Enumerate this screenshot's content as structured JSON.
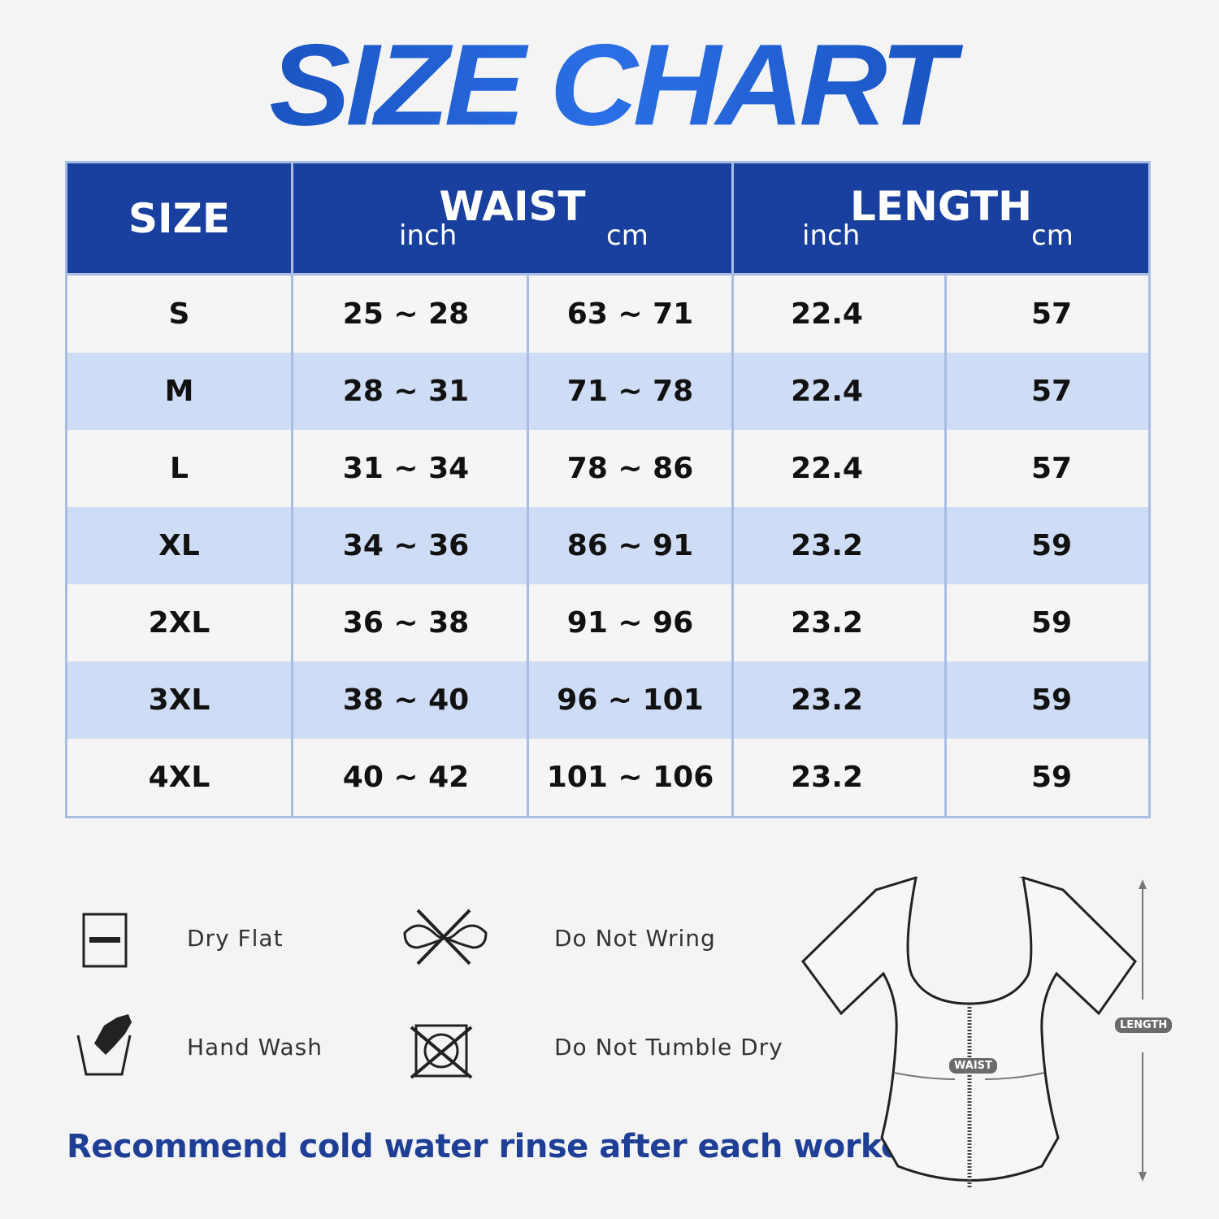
{
  "title": "SIZE CHART",
  "table": {
    "headers": {
      "size": "SIZE",
      "waist": "WAIST",
      "length": "LENGTH",
      "inch": "inch",
      "cm": "cm"
    },
    "rows": [
      {
        "size": "S",
        "waist_inch": "25 ~ 28",
        "waist_cm": "63 ~ 71",
        "length_inch": "22.4",
        "length_cm": "57"
      },
      {
        "size": "M",
        "waist_inch": "28 ~ 31",
        "waist_cm": "71 ~ 78",
        "length_inch": "22.4",
        "length_cm": "57"
      },
      {
        "size": "L",
        "waist_inch": "31 ~ 34",
        "waist_cm": "78 ~ 86",
        "length_inch": "22.4",
        "length_cm": "57"
      },
      {
        "size": "XL",
        "waist_inch": "34 ~ 36",
        "waist_cm": "86 ~ 91",
        "length_inch": "23.2",
        "length_cm": "59"
      },
      {
        "size": "2XL",
        "waist_inch": "36 ~ 38",
        "waist_cm": "91 ~ 96",
        "length_inch": "23.2",
        "length_cm": "59"
      },
      {
        "size": "3XL",
        "waist_inch": "38 ~ 40",
        "waist_cm": "96 ~ 101",
        "length_inch": "23.2",
        "length_cm": "59"
      },
      {
        "size": "4XL",
        "waist_inch": "40 ~ 42",
        "waist_cm": "101 ~ 106",
        "length_inch": "23.2",
        "length_cm": "59"
      }
    ]
  },
  "care": {
    "dry_flat": "Dry Flat",
    "do_not_wring": "Do Not Wring",
    "hand_wash": "Hand Wash",
    "do_not_tumble_dry": "Do Not Tumble Dry"
  },
  "note": "Recommend cold water rinse after each workout.",
  "diagram": {
    "waist_label": "WAIST",
    "length_label": "LENGTH"
  },
  "colors": {
    "header_bg": "#1a409f",
    "alt_row": "#cfdcf5",
    "accent": "#1e3f95"
  }
}
